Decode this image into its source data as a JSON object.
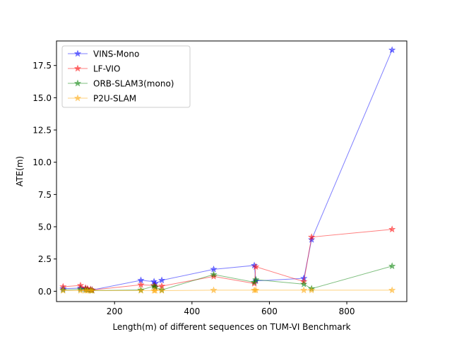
{
  "chart_data": {
    "type": "line",
    "xlabel": "Length(m) of different sequences on TUM-VI Benchmark",
    "ylabel": "ATE(m)",
    "xlim": [
      50,
      955
    ],
    "ylim": [
      -0.8,
      19.4
    ],
    "xticks": [
      200,
      400,
      600,
      800
    ],
    "yticks": [
      0.0,
      2.5,
      5.0,
      7.5,
      10.0,
      12.5,
      15.0,
      17.5
    ],
    "xtick_labels": [
      "200",
      "400",
      "600",
      "800"
    ],
    "ytick_labels": [
      "0.0",
      "2.5",
      "5.0",
      "7.5",
      "10.0",
      "12.5",
      "15.0",
      "17.5"
    ],
    "grid": false,
    "legend_position": "top-left",
    "marker": "star",
    "series": [
      {
        "name": "VINS-Mono",
        "color": "#0000ff",
        "x": [
          67,
          112,
          125,
          130,
          138,
          142,
          268,
          302,
          305,
          322,
          456,
          561,
          565,
          689,
          709,
          917
        ],
        "y": [
          0.2,
          0.25,
          0.2,
          0.15,
          0.12,
          0.1,
          0.85,
          0.75,
          0.6,
          0.85,
          1.7,
          2.0,
          0.8,
          1.0,
          4.0,
          18.7
        ]
      },
      {
        "name": "LF-VIO",
        "color": "#ff0000",
        "x": [
          67,
          112,
          125,
          130,
          138,
          142,
          268,
          302,
          305,
          322,
          456,
          561,
          565,
          689,
          709,
          917
        ],
        "y": [
          0.35,
          0.45,
          0.25,
          0.2,
          0.15,
          0.1,
          0.5,
          0.45,
          0.35,
          0.4,
          1.15,
          0.6,
          1.9,
          0.75,
          4.2,
          4.8
        ]
      },
      {
        "name": "ORB-SLAM3(mono)",
        "color": "#008000",
        "x": [
          67,
          112,
          125,
          130,
          138,
          142,
          268,
          302,
          305,
          322,
          456,
          561,
          565,
          689,
          709,
          917
        ],
        "y": [
          0.1,
          0.15,
          0.12,
          0.1,
          0.08,
          0.05,
          0.1,
          0.4,
          0.3,
          0.1,
          1.3,
          0.7,
          0.9,
          0.55,
          0.2,
          1.95
        ]
      },
      {
        "name": "P2U-SLAM",
        "color": "#ffa500",
        "x": [
          67,
          112,
          125,
          130,
          138,
          142,
          268,
          302,
          305,
          322,
          456,
          561,
          565,
          689,
          709,
          917
        ],
        "y": [
          0.05,
          0.05,
          0.05,
          0.05,
          0.05,
          0.05,
          0.05,
          0.05,
          0.05,
          0.05,
          0.08,
          0.08,
          0.08,
          0.08,
          0.08,
          0.08
        ]
      }
    ]
  }
}
